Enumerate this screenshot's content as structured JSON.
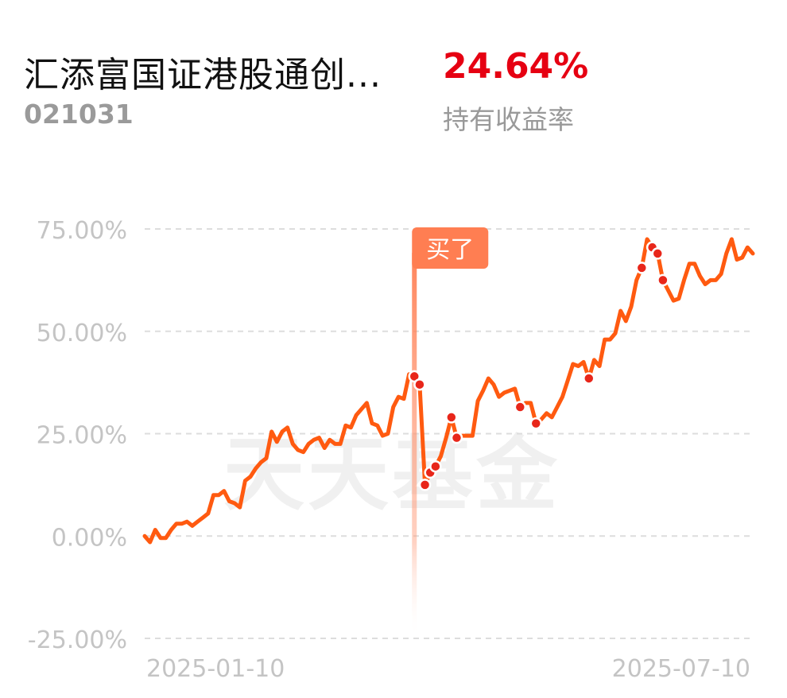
{
  "header": {
    "fund_name": "汇添富国证港股通创...",
    "fund_code": "021031",
    "return_value": "24.64%",
    "return_label": "持有收益率"
  },
  "watermark": "天天基金",
  "colors": {
    "line": "#ff5a10",
    "marker": "#e8261a",
    "buy": "#ff7e52",
    "grid": "#dddddd",
    "axis_text": "#c4c4c4",
    "return_red": "#e60012"
  },
  "chart_data": {
    "type": "line",
    "ylim": [
      -25,
      75
    ],
    "yticks": [
      75,
      50,
      25,
      0,
      -25
    ],
    "ytick_labels": [
      "75.00%",
      "50.00%",
      "25.00%",
      "0.00%",
      "-25.00%"
    ],
    "xtick_labels": [
      "2025-01-10",
      "2025-07-10"
    ],
    "grid": true,
    "buy_label": "买了",
    "buy_index": 51,
    "series": [
      {
        "values": [
          0.0,
          -1.5,
          1.5,
          -0.5,
          -0.5,
          1.5,
          3.0,
          3.0,
          3.5,
          2.5,
          3.5,
          4.5,
          5.5,
          10.0,
          10.0,
          11.0,
          8.5,
          8.0,
          7.0,
          13.5,
          14.5,
          16.5,
          18.0,
          19.0,
          25.5,
          23.0,
          25.5,
          26.5,
          22.5,
          21.0,
          20.5,
          22.5,
          23.5,
          24.0,
          21.5,
          23.5,
          22.5,
          22.5,
          27.0,
          26.5,
          29.5,
          31.0,
          32.5,
          27.5,
          27.0,
          24.5,
          25.0,
          31.5,
          34.0,
          33.5,
          39.5,
          39.0,
          37.0,
          12.5,
          15.5,
          17.0,
          19.5,
          24.0,
          29.0,
          24.0,
          24.5,
          24.5,
          24.5,
          33.0,
          35.5,
          38.5,
          37.0,
          34.0,
          35.0,
          35.5,
          36.0,
          31.5,
          32.5,
          32.5,
          27.5,
          28.5,
          30.0,
          29.0,
          31.5,
          34.0,
          38.0,
          42.0,
          41.5,
          42.5,
          38.5,
          43.0,
          41.5,
          48.0,
          48.0,
          49.5,
          55.0,
          52.5,
          56.0,
          62.5,
          65.5,
          72.5,
          70.5,
          69.0,
          62.5,
          60.0,
          57.5,
          58.0,
          62.5,
          66.5,
          66.5,
          63.5,
          61.5,
          62.5,
          62.5,
          64.0,
          69.0,
          72.5,
          67.5,
          68.0,
          70.5,
          69.0
        ],
        "markers": [
          51,
          52,
          53,
          54,
          55,
          58,
          59,
          71,
          74,
          84,
          94,
          96,
          97,
          98
        ]
      }
    ]
  }
}
